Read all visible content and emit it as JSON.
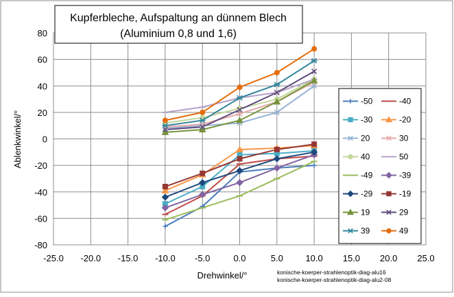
{
  "chart_data": {
    "type": "line",
    "title_line1": "Kupferbleche, Aufspaltung an dünnem Blech",
    "title_line2": "(Aluminium 0,8 und 1,6)",
    "xlabel": "Drehwinkel/°",
    "ylabel": "Ablenkwinkel/°",
    "xlim": [
      -25,
      25
    ],
    "ylim": [
      -80,
      80
    ],
    "x_ticks": [
      -25,
      -20,
      -15,
      -10,
      -5,
      0,
      5,
      10,
      15,
      20,
      25
    ],
    "x_tick_labels": [
      "-25.0",
      "-20.0",
      "-15.0",
      "-10.0",
      "-5.0",
      "0.0",
      "5.0",
      "10.0",
      "15.0",
      "20.0",
      "25.0"
    ],
    "y_ticks": [
      -80,
      -60,
      -40,
      -20,
      0,
      20,
      40,
      60,
      80
    ],
    "y_tick_labels": [
      "-80",
      "-60",
      "-40",
      "-20",
      "0",
      "20",
      "40",
      "60",
      "80"
    ],
    "grid": true,
    "legend_position": "right",
    "x": [
      -10,
      -5,
      0,
      5,
      10
    ],
    "series": [
      {
        "name": "-50",
        "color": "#4a7ebb",
        "marker": "plus",
        "values": [
          -66,
          -51,
          -25,
          -22,
          -20
        ]
      },
      {
        "name": "-40",
        "color": "#be4b48",
        "marker": "dash",
        "values": [
          -57,
          -43,
          -19,
          -15,
          -13
        ]
      },
      {
        "name": "-30",
        "color": "#4bacc6",
        "marker": "square",
        "values": [
          -49,
          -36,
          -12,
          -11,
          -9
        ]
      },
      {
        "name": "-20",
        "color": "#f79646",
        "marker": "triangle",
        "values": [
          -39,
          -27,
          -8,
          -7,
          -5
        ]
      },
      {
        "name": "20",
        "color": "#95b3d7",
        "marker": "x",
        "values": [
          8,
          10,
          12,
          20,
          40
        ]
      },
      {
        "name": "30",
        "color": "#e6a9a9",
        "marker": "x",
        "values": [
          9,
          11,
          19,
          28,
          43
        ]
      },
      {
        "name": "40",
        "color": "#c3d69b",
        "marker": "circle",
        "values": [
          12,
          16,
          23,
          30,
          45
        ]
      },
      {
        "name": "50",
        "color": "#b3a2c7",
        "marker": "dash",
        "values": [
          20,
          24,
          31,
          35,
          45
        ]
      },
      {
        "name": "-49",
        "color": "#9bbb59",
        "marker": "dash",
        "values": [
          -61,
          -52,
          -43,
          -30,
          -17
        ]
      },
      {
        "name": "-39",
        "color": "#8064a2",
        "marker": "diamond",
        "values": [
          -52,
          -42,
          -33,
          -22,
          -12
        ]
      },
      {
        "name": "-29",
        "color": "#1f497d",
        "marker": "diamond",
        "values": [
          -44,
          -33,
          -24,
          -15,
          -10
        ]
      },
      {
        "name": "-19",
        "color": "#953735",
        "marker": "square",
        "values": [
          -36,
          -26,
          -15,
          -8,
          -4
        ]
      },
      {
        "name": "19",
        "color": "#77933c",
        "marker": "triangle",
        "values": [
          5,
          7,
          14,
          28,
          44
        ]
      },
      {
        "name": "29",
        "color": "#604a7b",
        "marker": "x",
        "values": [
          7,
          9,
          22,
          35,
          51
        ]
      },
      {
        "name": "39",
        "color": "#31859c",
        "marker": "asterisk",
        "values": [
          10,
          14,
          31,
          41,
          59
        ]
      },
      {
        "name": "49",
        "color": "#e46c0a",
        "marker": "circle",
        "values": [
          14,
          20,
          39,
          50,
          68
        ]
      }
    ]
  },
  "footnote": {
    "line1": "konische-koerper-strahlenoptik-diag-alu16",
    "line2": "konische-koerper-strahlenoptik-diag-alu2-08"
  }
}
